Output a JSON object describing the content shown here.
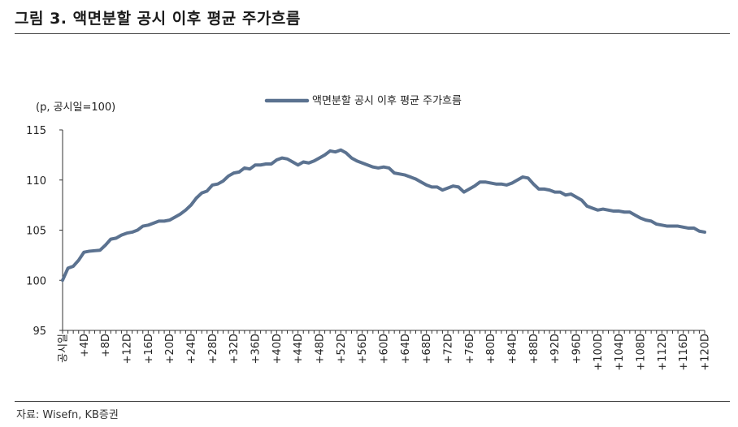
{
  "figure": {
    "title": "그림 3. 액면분할 공시 이후 평균 주가흐름",
    "source": "자료: Wisefn, KB증권"
  },
  "chart_data": {
    "type": "line",
    "unit_label": "(p, 공시일=100)",
    "ylim": [
      95,
      115
    ],
    "yticks": [
      "95",
      "100",
      "105",
      "110",
      "115"
    ],
    "grid": false,
    "legend_position": "top-center",
    "x_tick_labels": [
      "공시일",
      "+4D",
      "+8D",
      "+12D",
      "+16D",
      "+20D",
      "+24D",
      "+28D",
      "+32D",
      "+36D",
      "+40D",
      "+44D",
      "+48D",
      "+52D",
      "+56D",
      "+60D",
      "+64D",
      "+68D",
      "+72D",
      "+76D",
      "+80D",
      "+84D",
      "+88D",
      "+92D",
      "+96D",
      "+100D",
      "+104D",
      "+108D",
      "+112D",
      "+116D",
      "+120D"
    ],
    "x": [
      0,
      1,
      2,
      3,
      4,
      5,
      6,
      7,
      8,
      9,
      10,
      11,
      12,
      13,
      14,
      15,
      16,
      17,
      18,
      19,
      20,
      21,
      22,
      23,
      24,
      25,
      26,
      27,
      28,
      29,
      30,
      31,
      32,
      33,
      34,
      35,
      36,
      37,
      38,
      39,
      40,
      41,
      42,
      43,
      44,
      45,
      46,
      47,
      48,
      49,
      50,
      51,
      52,
      53,
      54,
      55,
      56,
      57,
      58,
      59,
      60,
      61,
      62,
      63,
      64,
      65,
      66,
      67,
      68,
      69,
      70,
      71,
      72,
      73,
      74,
      75,
      76,
      77,
      78,
      79,
      80,
      81,
      82,
      83,
      84,
      85,
      86,
      87,
      88,
      89,
      90,
      91,
      92,
      93,
      94,
      95,
      96,
      97,
      98,
      99,
      100,
      101,
      102,
      103,
      104,
      105,
      106,
      107,
      108,
      109,
      110,
      111,
      112,
      113,
      114,
      115,
      116,
      117,
      118,
      119,
      120
    ],
    "series": [
      {
        "name": "액면분할 공시 이후 평균 주가흐름",
        "color": "#5b7290",
        "values": [
          100.0,
          101.2,
          101.4,
          102.0,
          102.8,
          102.9,
          102.95,
          103.0,
          103.5,
          104.1,
          104.2,
          104.5,
          104.7,
          104.8,
          105.0,
          105.4,
          105.5,
          105.7,
          105.9,
          105.9,
          106.0,
          106.3,
          106.6,
          107.0,
          107.5,
          108.2,
          108.7,
          108.9,
          109.5,
          109.6,
          109.9,
          110.4,
          110.7,
          110.8,
          111.2,
          111.1,
          111.5,
          111.5,
          111.6,
          111.6,
          112.0,
          112.2,
          112.1,
          111.8,
          111.5,
          111.8,
          111.7,
          111.9,
          112.2,
          112.5,
          112.9,
          112.8,
          113.0,
          112.7,
          112.2,
          111.9,
          111.7,
          111.5,
          111.3,
          111.2,
          111.3,
          111.2,
          110.7,
          110.6,
          110.5,
          110.3,
          110.1,
          109.8,
          109.5,
          109.3,
          109.3,
          109.0,
          109.2,
          109.4,
          109.3,
          108.8,
          109.1,
          109.4,
          109.8,
          109.8,
          109.7,
          109.6,
          109.6,
          109.5,
          109.7,
          110.0,
          110.3,
          110.2,
          109.6,
          109.1,
          109.1,
          109.0,
          108.8,
          108.8,
          108.5,
          108.6,
          108.3,
          108.0,
          107.4,
          107.2,
          107.0,
          107.1,
          107.0,
          106.9,
          106.9,
          106.8,
          106.8,
          106.5,
          106.2,
          106.0,
          105.9,
          105.6,
          105.5,
          105.4,
          105.4,
          105.4,
          105.3,
          105.2,
          105.2,
          104.9,
          104.8
        ]
      }
    ]
  }
}
